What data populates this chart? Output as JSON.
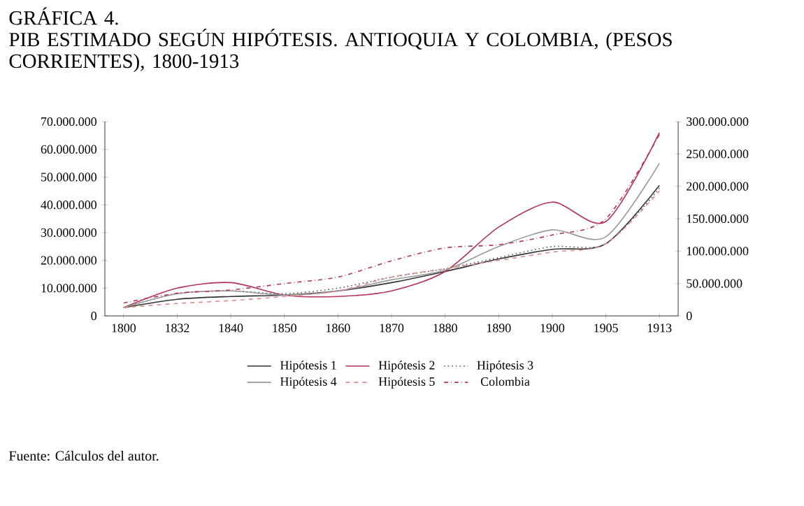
{
  "chart_data": {
    "type": "line",
    "title": "GRÁFICA 4.",
    "subtitle": "PIB ESTIMADO SEGÚN HIPÓTESIS. ANTIOQUIA Y COLOMBIA, (PESOS CORRIENTES), 1800-1913",
    "categories": [
      "1800",
      "1832",
      "1840",
      "1850",
      "1860",
      "1870",
      "1880",
      "1890",
      "1900",
      "1905",
      "1913"
    ],
    "series": [
      {
        "name": "Hipótesis 1",
        "color": "#333333",
        "line_style": "solid",
        "values": [
          3000000,
          6000000,
          7000000,
          7500000,
          9000000,
          12000000,
          16000000,
          20500000,
          24000000,
          26000000,
          47000000
        ]
      },
      {
        "name": "Hipótesis 2",
        "color": "#b5305a",
        "line_style": "solid",
        "values": [
          3000000,
          10000000,
          12000000,
          7500000,
          7000000,
          9000000,
          16000000,
          32000000,
          41000000,
          34000000,
          66000000
        ]
      },
      {
        "name": "Hipótesis 3",
        "color": "#555555",
        "line_style": "dotted",
        "values": [
          3000000,
          8000000,
          9000000,
          8000000,
          10000000,
          14000000,
          17000000,
          21000000,
          25000000,
          26000000,
          46000000
        ]
      },
      {
        "name": "Hipótesis 4",
        "color": "#999999",
        "line_style": "solid",
        "values": [
          3000000,
          8000000,
          9000000,
          7500000,
          9000000,
          13000000,
          16500000,
          25000000,
          31000000,
          28500000,
          55000000
        ]
      },
      {
        "name": "Hipótesis 5",
        "color": "#e08a8a",
        "line_style": "dashed",
        "values": [
          3000000,
          4500000,
          5500000,
          7000000,
          9000000,
          14000000,
          17000000,
          20000000,
          23000000,
          26000000,
          45000000
        ]
      },
      {
        "name": "Colombia",
        "color": "#b5305a",
        "line_style": "dashdot",
        "axis": "y2",
        "values": [
          20000000,
          35000000,
          40000000,
          50000000,
          60000000,
          85000000,
          105000000,
          110000000,
          125000000,
          150000000,
          280000000
        ]
      }
    ],
    "ylim": [
      0,
      70000000
    ],
    "yticks": [
      0,
      {
        "value": 10000000,
        "label": "10.000.000"
      },
      {
        "value": 20000000,
        "label": "20.000.000"
      },
      {
        "value": 30000000,
        "label": "30.000.000"
      },
      {
        "value": 40000000,
        "label": "40.000.000"
      },
      {
        "value": 50000000,
        "label": "50.000.000"
      },
      {
        "value": 60000000,
        "label": "60.000.000"
      },
      {
        "value": 70000000,
        "label": "70.000.000"
      }
    ],
    "y2lim": [
      0,
      300000000
    ],
    "y2ticks": [
      0,
      {
        "value": 50000000,
        "label": "50.000.000"
      },
      {
        "value": 100000000,
        "label": "100.000.000"
      },
      {
        "value": 150000000,
        "label": "150.000.000"
      },
      {
        "value": 200000000,
        "label": "200.000.000"
      },
      {
        "value": 250000000,
        "label": "250.000.000"
      },
      {
        "value": 300000000,
        "label": "300.000.000"
      }
    ],
    "legend": "bottom",
    "annotations": [
      "Fuente: Cálculos del autor."
    ]
  }
}
